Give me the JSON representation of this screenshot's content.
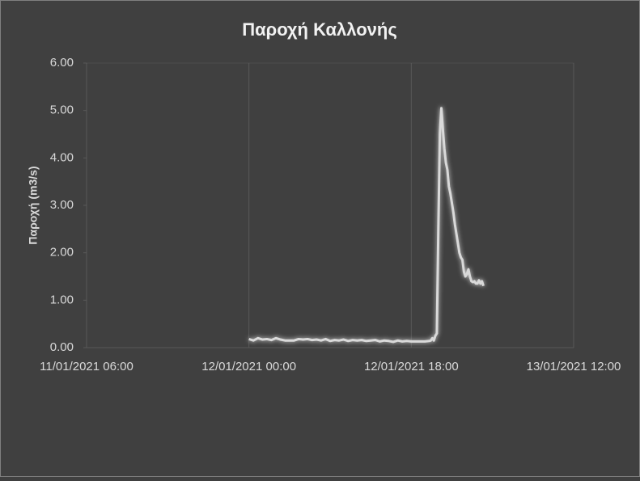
{
  "chart_data": {
    "type": "line",
    "title": "Παροχή Καλλονής",
    "y_label": "Παροχή (m3/s)",
    "xlim": [
      "11/01/2021 06:00",
      "13/01/2021 12:00"
    ],
    "xticks": [
      "11/01/2021 06:00",
      "12/01/2021 00:00",
      "12/01/2021 18:00",
      "13/01/2021 12:00"
    ],
    "ylim": [
      0,
      6
    ],
    "yticks": [
      {
        "value": 0,
        "label": "0.00"
      },
      {
        "value": 1,
        "label": "1.00"
      },
      {
        "value": 2,
        "label": "2.00"
      },
      {
        "value": 3,
        "label": "3.00"
      },
      {
        "value": 4,
        "label": "4.00"
      },
      {
        "value": 5,
        "label": "5.00"
      },
      {
        "value": 6,
        "label": "6.00"
      }
    ],
    "grid": true,
    "x": [
      "12/01/2021 00:00",
      "12/01/2021 00:30",
      "12/01/2021 01:00",
      "12/01/2021 01:30",
      "12/01/2021 02:00",
      "12/01/2021 02:30",
      "12/01/2021 03:00",
      "12/01/2021 03:30",
      "12/01/2021 04:00",
      "12/01/2021 04:30",
      "12/01/2021 05:00",
      "12/01/2021 05:30",
      "12/01/2021 06:00",
      "12/01/2021 06:30",
      "12/01/2021 07:00",
      "12/01/2021 07:30",
      "12/01/2021 08:00",
      "12/01/2021 08:30",
      "12/01/2021 09:00",
      "12/01/2021 09:30",
      "12/01/2021 10:00",
      "12/01/2021 10:30",
      "12/01/2021 11:00",
      "12/01/2021 11:30",
      "12/01/2021 12:00",
      "12/01/2021 12:30",
      "12/01/2021 13:00",
      "12/01/2021 13:30",
      "12/01/2021 14:00",
      "12/01/2021 14:30",
      "12/01/2021 15:00",
      "12/01/2021 15:30",
      "12/01/2021 16:00",
      "12/01/2021 16:30",
      "12/01/2021 17:00",
      "12/01/2021 17:30",
      "12/01/2021 18:00",
      "12/01/2021 18:30",
      "12/01/2021 19:00",
      "12/01/2021 19:30",
      "12/01/2021 20:00",
      "12/01/2021 20:10",
      "12/01/2021 20:20",
      "12/01/2021 20:30",
      "12/01/2021 20:40",
      "12/01/2021 20:50",
      "12/01/2021 21:00",
      "12/01/2021 21:10",
      "12/01/2021 21:20",
      "12/01/2021 21:30",
      "12/01/2021 21:40",
      "12/01/2021 21:50",
      "12/01/2021 22:00",
      "12/01/2021 22:10",
      "12/01/2021 22:20",
      "12/01/2021 22:30",
      "12/01/2021 22:40",
      "12/01/2021 22:50",
      "12/01/2021 23:00",
      "12/01/2021 23:10",
      "12/01/2021 23:20",
      "12/01/2021 23:30",
      "12/01/2021 23:40",
      "12/01/2021 23:50",
      "13/01/2021 00:00",
      "13/01/2021 00:10",
      "13/01/2021 00:20",
      "13/01/2021 00:30",
      "13/01/2021 00:40",
      "13/01/2021 00:50",
      "13/01/2021 01:00",
      "13/01/2021 01:10",
      "13/01/2021 01:20",
      "13/01/2021 01:30",
      "13/01/2021 01:40",
      "13/01/2021 01:50",
      "13/01/2021 02:00"
    ],
    "series": [
      {
        "color": "#d9d9d9",
        "values": [
          0.18,
          0.15,
          0.2,
          0.17,
          0.18,
          0.16,
          0.2,
          0.17,
          0.15,
          0.15,
          0.15,
          0.18,
          0.17,
          0.18,
          0.16,
          0.17,
          0.15,
          0.18,
          0.14,
          0.16,
          0.15,
          0.17,
          0.14,
          0.16,
          0.15,
          0.16,
          0.14,
          0.15,
          0.16,
          0.13,
          0.15,
          0.14,
          0.12,
          0.15,
          0.13,
          0.14,
          0.13,
          0.13,
          0.13,
          0.13,
          0.14,
          0.15,
          0.2,
          0.15,
          0.25,
          0.3,
          2.5,
          4.5,
          5.05,
          4.6,
          4.2,
          3.9,
          3.75,
          3.4,
          3.25,
          3.05,
          2.85,
          2.6,
          2.4,
          2.2,
          2.0,
          1.9,
          1.85,
          1.6,
          1.5,
          1.55,
          1.65,
          1.5,
          1.4,
          1.38,
          1.4,
          1.35,
          1.35,
          1.42,
          1.35,
          1.4,
          1.3
        ]
      }
    ]
  }
}
